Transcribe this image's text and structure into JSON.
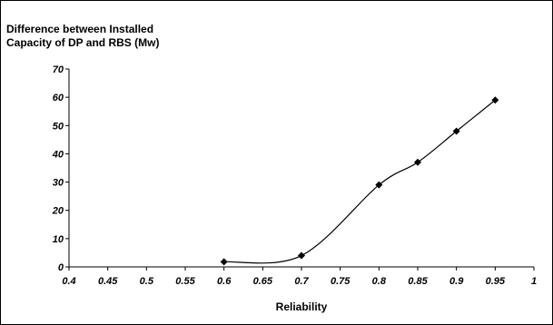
{
  "chart_data": {
    "type": "scatter",
    "title": "",
    "ylabel_lines": [
      "Difference between Installed",
      "Capacity of DP and RBS (Mw)"
    ],
    "xlabel": "Reliability",
    "xlim": [
      0.4,
      1
    ],
    "ylim": [
      0,
      70
    ],
    "xticks": [
      "0.4",
      "0.45",
      "0.5",
      "0.55",
      "0.6",
      "0.65",
      "0.7",
      "0.75",
      "0.8",
      "0.85",
      "0.9",
      "0.95",
      "1"
    ],
    "yticks": [
      "0",
      "10",
      "20",
      "30",
      "40",
      "50",
      "60",
      "70"
    ],
    "grid": false,
    "line": "smoothed",
    "marker": "diamond",
    "series": [
      {
        "x": [
          0.6,
          0.7,
          0.8,
          0.85,
          0.9,
          0.95
        ],
        "y": [
          1.8,
          4,
          29,
          37,
          48,
          59
        ]
      }
    ]
  }
}
